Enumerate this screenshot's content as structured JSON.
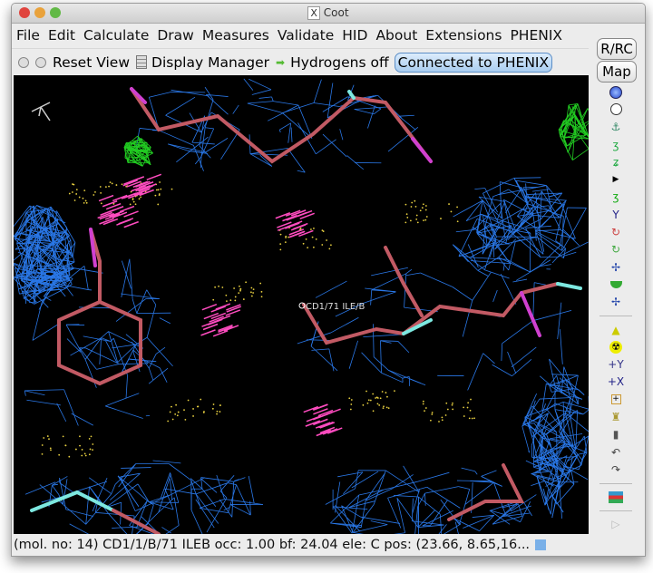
{
  "window": {
    "title": "Coot"
  },
  "menu": [
    "File",
    "Edit",
    "Calculate",
    "Draw",
    "Measures",
    "Validate",
    "HID",
    "About",
    "Extensions",
    "PHENIX"
  ],
  "toolbar": {
    "reset_view": "Reset View",
    "display_manager": "Display Manager",
    "hydrogens": "Hydrogens off",
    "phenix": "Connected to PHENIX"
  },
  "side": {
    "rrc": "R/RC",
    "map": "Map"
  },
  "viewport": {
    "atom_label": "CD1/71 ILE/B"
  },
  "tools": [
    "sphere-refine-icon",
    "clock-icon",
    "anchor-icon",
    "rotamer-icon",
    "flip-icon",
    "more-arrow-icon",
    "mutate-icon",
    "auto-fit-icon",
    "torsion-icon",
    "rotate-translate-icon",
    "regularize-icon",
    "side-chain-180-icon",
    "rigid-body-icon",
    "delete-icon",
    "radiation-icon",
    "add-atom-icon",
    "add-residue-icon",
    "place-atom-icon",
    "stamp-icon",
    "trash-icon",
    "undo-icon",
    "redo-icon",
    "flag-icon",
    "play-icon"
  ],
  "status": "(mol. no: 14)  CD1/1/B/71 ILEB occ:  1.00 bf: 24.04 ele:  C pos: (23.66, 8.65,16..."
}
